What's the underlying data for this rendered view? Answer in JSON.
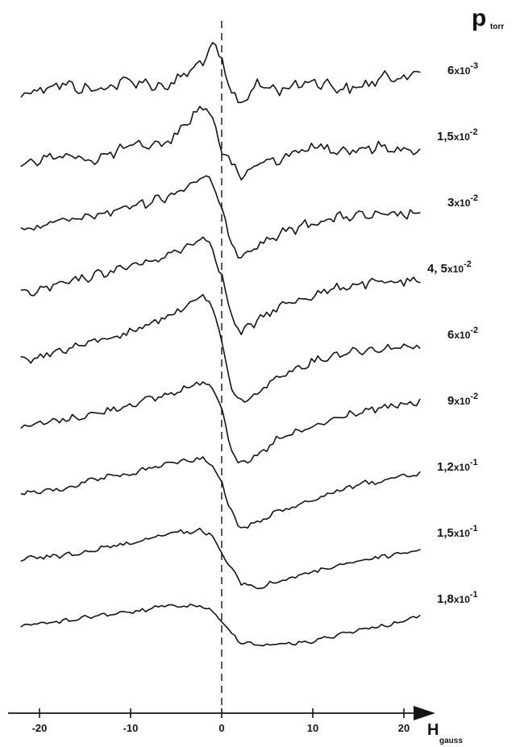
{
  "chart_data": {
    "type": "line",
    "title": "",
    "xlabel": "H",
    "xlabel_subscript": "gauss",
    "ylabel": "p",
    "ylabel_subscript": "torr",
    "xlim": [
      -22,
      22
    ],
    "xticks": [
      -20,
      -10,
      0,
      10,
      20
    ],
    "xtick_labels": [
      "-20",
      "-10",
      "0",
      "10",
      "20"
    ],
    "reference_line": {
      "x": 0,
      "style": "dashed"
    },
    "grid": false,
    "legend": "none",
    "series": [
      {
        "label_base": "6",
        "label_exp": "-3",
        "x": [
          -22,
          -18,
          -14,
          -10,
          -6,
          -2,
          -1,
          0,
          1,
          2,
          4,
          6,
          10,
          14,
          18,
          22
        ],
        "y": [
          0.05,
          0.2,
          0.1,
          0.25,
          0.15,
          0.55,
          0.8,
          0.55,
          0.05,
          -0.1,
          0.2,
          0.1,
          0.25,
          0.1,
          0.3,
          0.35
        ]
      },
      {
        "label_base": "1,5",
        "label_exp": "-2",
        "x": [
          -22,
          -18,
          -14,
          -10,
          -6,
          -2,
          -1,
          0,
          1,
          2,
          4,
          6,
          10,
          14,
          18,
          22
        ],
        "y": [
          0.0,
          0.1,
          0.05,
          0.25,
          0.3,
          0.9,
          0.7,
          0.2,
          0.0,
          -0.25,
          0.0,
          0.05,
          0.25,
          0.2,
          0.25,
          0.15
        ]
      },
      {
        "label_base": "3",
        "label_exp": "-2",
        "x": [
          -22,
          -18,
          -14,
          -10,
          -6,
          -2,
          -1,
          0,
          1,
          2,
          4,
          6,
          10,
          14,
          18,
          22
        ],
        "y": [
          0.0,
          0.1,
          0.2,
          0.35,
          0.5,
          0.8,
          0.7,
          0.3,
          -0.2,
          -0.4,
          -0.25,
          -0.1,
          0.1,
          0.2,
          0.2,
          0.25
        ]
      },
      {
        "label_base": "4, 5",
        "label_exp": "-2",
        "x": [
          -22,
          -18,
          -14,
          -10,
          -6,
          -2,
          -1,
          0,
          1,
          2,
          4,
          6,
          10,
          14,
          18,
          22
        ],
        "y": [
          0.0,
          0.15,
          0.3,
          0.45,
          0.6,
          0.9,
          0.75,
          0.3,
          -0.3,
          -0.6,
          -0.4,
          -0.2,
          0.0,
          0.15,
          0.2,
          0.2
        ]
      },
      {
        "label_base": "6",
        "label_exp": "-2",
        "x": [
          -22,
          -18,
          -14,
          -10,
          -6,
          -2,
          -1,
          0,
          1,
          2,
          4,
          6,
          10,
          14,
          18,
          22
        ],
        "y": [
          0.0,
          0.15,
          0.3,
          0.45,
          0.7,
          1.0,
          0.85,
          0.3,
          -0.4,
          -0.65,
          -0.5,
          -0.25,
          0.0,
          0.15,
          0.2,
          0.25
        ]
      },
      {
        "label_base": "9",
        "label_exp": "-2",
        "x": [
          -22,
          -18,
          -14,
          -10,
          -6,
          -2,
          -1,
          0,
          1,
          2,
          4,
          6,
          10,
          14,
          18,
          22
        ],
        "y": [
          0.0,
          0.1,
          0.2,
          0.35,
          0.5,
          0.7,
          0.65,
          0.3,
          -0.3,
          -0.6,
          -0.45,
          -0.2,
          0.0,
          0.2,
          0.3,
          0.4
        ]
      },
      {
        "label_base": "1,2",
        "label_exp": "-1",
        "x": [
          -22,
          -18,
          -14,
          -10,
          -6,
          -2,
          -1,
          0,
          1,
          2,
          4,
          6,
          10,
          14,
          18,
          22
        ],
        "y": [
          0.0,
          0.05,
          0.2,
          0.3,
          0.45,
          0.55,
          0.4,
          0.15,
          -0.25,
          -0.55,
          -0.45,
          -0.3,
          -0.1,
          0.1,
          0.2,
          0.3
        ]
      },
      {
        "label_base": "1,5",
        "label_exp": "-1",
        "x": [
          -22,
          -18,
          -14,
          -10,
          -6,
          -2,
          -1,
          0,
          1,
          2,
          4,
          6,
          10,
          14,
          18,
          22
        ],
        "y": [
          0.0,
          0.05,
          0.15,
          0.25,
          0.4,
          0.45,
          0.35,
          0.1,
          -0.15,
          -0.35,
          -0.45,
          -0.35,
          -0.2,
          -0.05,
          0.05,
          0.15
        ]
      },
      {
        "label_base": "1,8",
        "label_exp": "-1",
        "x": [
          -22,
          -18,
          -14,
          -10,
          -6,
          -2,
          -1,
          0,
          1,
          2,
          4,
          6,
          10,
          14,
          18,
          22
        ],
        "y": [
          0.0,
          0.05,
          0.15,
          0.2,
          0.3,
          0.3,
          0.2,
          0.05,
          -0.1,
          -0.25,
          -0.3,
          -0.3,
          -0.25,
          -0.1,
          0.0,
          0.15
        ]
      }
    ]
  }
}
